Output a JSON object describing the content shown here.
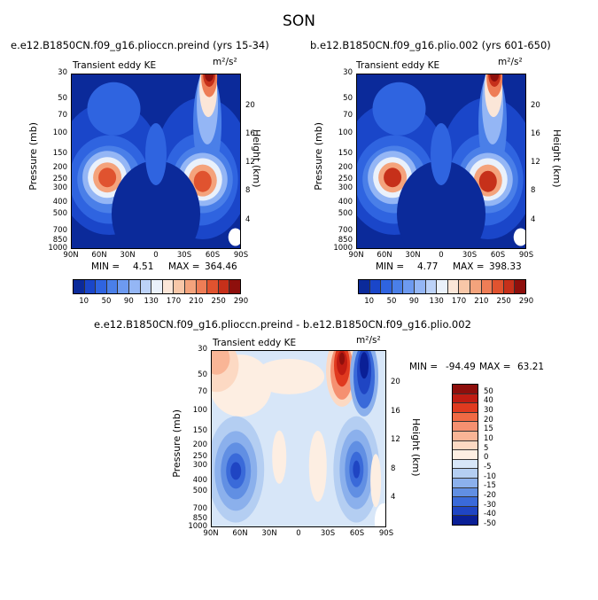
{
  "supertitle": "SON",
  "colors": {
    "ke_scale": [
      "#0b2a9a",
      "#1a46c9",
      "#2f64e0",
      "#4a7fe8",
      "#6d9af0",
      "#94b6f5",
      "#bcd2f8",
      "#eaf1fb",
      "#fbe6d8",
      "#f8c7a8",
      "#f4a37c",
      "#ee7d56",
      "#e0532f",
      "#c6301a",
      "#8e0f0c"
    ],
    "diff_scale": [
      "#8e0f0c",
      "#c01c12",
      "#e03a1f",
      "#f06a44",
      "#f59070",
      "#f9b596",
      "#fcd9c3",
      "#fdeee2",
      "#d7e6f8",
      "#b4cef2",
      "#8bb0ec",
      "#618fe3",
      "#3a6ad9",
      "#1f45c3",
      "#0a1f96"
    ]
  },
  "panels": {
    "left": {
      "title": "e.e12.B1850CN.f09_g16.plioccn.preind (yrs 15-34)",
      "var_label": "Transient eddy KE",
      "units": "m²/s²",
      "min_label": "MIN =",
      "min_value": "4.51",
      "max_label": "MAX =",
      "max_value": "364.46"
    },
    "right": {
      "title": "b.e12.B1850CN.f09_g16.plio.002 (yrs 601-650)",
      "var_label": "Transient eddy KE",
      "units": "m²/s²",
      "min_label": "MIN =",
      "min_value": "4.77",
      "max_label": "MAX =",
      "max_value": "398.33"
    },
    "bottom": {
      "title": "e.e12.B1850CN.f09_g16.plioccn.preind - b.e12.B1850CN.f09_g16.plio.002",
      "var_label": "Transient eddy KE",
      "units": "m²/s²",
      "min_label": "MIN =",
      "min_value": "-94.49",
      "max_label": "MAX =",
      "max_value": "63.21"
    }
  },
  "axes": {
    "ylabel": "Pressure (mb)",
    "y2label": "Height (km)",
    "x_ticks": [
      "90N",
      "60N",
      "30N",
      "0",
      "30S",
      "60S",
      "90S"
    ],
    "p_ticks": [
      "30",
      "50",
      "70",
      "100",
      "150",
      "200",
      "250",
      "300",
      "400",
      "500",
      "700",
      "850",
      "1000"
    ],
    "h_ticks": [
      "20",
      "16",
      "12",
      "8",
      "4"
    ]
  },
  "ke_colorbar_labels": [
    "10",
    "50",
    "90",
    "130",
    "170",
    "210",
    "250",
    "290"
  ],
  "diff_colorbar_labels": [
    "50",
    "40",
    "30",
    "20",
    "15",
    "10",
    "5",
    "0",
    "-5",
    "-10",
    "-15",
    "-20",
    "-30",
    "-40",
    "-50"
  ],
  "chart_data": [
    {
      "type": "heatmap",
      "title": "e.e12.B1850CN.f09_g16.plioccn.preind (yrs 15-34)",
      "xlabel": "",
      "ylabel": "Pressure (mb)",
      "y2label": "Height (km)",
      "x_ticks": [
        "90N",
        "60N",
        "30N",
        "0",
        "30S",
        "60S",
        "90S"
      ],
      "y_ticks": [
        30,
        50,
        70,
        100,
        150,
        200,
        250,
        300,
        400,
        500,
        700,
        850,
        1000
      ],
      "ylim": [
        1000,
        30
      ],
      "y_scale": "log",
      "contour_levels": [
        10,
        30,
        50,
        70,
        90,
        110,
        130,
        150,
        170,
        190,
        210,
        230,
        250,
        270,
        290
      ],
      "min": 4.51,
      "max": 364.46,
      "features": [
        {
          "lat": 50,
          "p": 250,
          "value": 290
        },
        {
          "lat": -50,
          "p": 250,
          "value": 300
        },
        {
          "lat": -55,
          "p": 30,
          "value": 360
        }
      ]
    },
    {
      "type": "heatmap",
      "title": "b.e12.B1850CN.f09_g16.plio.002 (yrs 601-650)",
      "xlabel": "",
      "ylabel": "Pressure (mb)",
      "y2label": "Height (km)",
      "x_ticks": [
        "90N",
        "60N",
        "30N",
        "0",
        "30S",
        "60S",
        "90S"
      ],
      "y_ticks": [
        30,
        50,
        70,
        100,
        150,
        200,
        250,
        300,
        400,
        500,
        700,
        850,
        1000
      ],
      "ylim": [
        1000,
        30
      ],
      "y_scale": "log",
      "contour_levels": [
        10,
        30,
        50,
        70,
        90,
        110,
        130,
        150,
        170,
        190,
        210,
        230,
        250,
        270,
        290
      ],
      "min": 4.77,
      "max": 398.33,
      "features": [
        {
          "lat": 55,
          "p": 250,
          "value": 310
        },
        {
          "lat": -55,
          "p": 280,
          "value": 320
        },
        {
          "lat": -55,
          "p": 30,
          "value": 390
        }
      ]
    },
    {
      "type": "heatmap",
      "title": "e.e12.B1850CN.f09_g16.plioccn.preind - b.e12.B1850CN.f09_g16.plio.002",
      "xlabel": "",
      "ylabel": "Pressure (mb)",
      "y2label": "Height (km)",
      "x_ticks": [
        "90N",
        "60N",
        "30N",
        "0",
        "30S",
        "60S",
        "90S"
      ],
      "y_ticks": [
        30,
        50,
        70,
        100,
        150,
        200,
        250,
        300,
        400,
        500,
        700,
        850,
        1000
      ],
      "ylim": [
        1000,
        30
      ],
      "y_scale": "log",
      "contour_levels": [
        -50,
        -40,
        -30,
        -20,
        -15,
        -10,
        -5,
        0,
        5,
        10,
        15,
        20,
        30,
        40,
        50
      ],
      "min": -94.49,
      "max": 63.21,
      "features": [
        {
          "lat": -45,
          "p": 40,
          "value": 60
        },
        {
          "lat": -65,
          "p": 50,
          "value": -90
        },
        {
          "lat": 65,
          "p": 330,
          "value": -35
        },
        {
          "lat": -60,
          "p": 320,
          "value": -45
        },
        {
          "lat": 80,
          "p": 40,
          "value": 20
        }
      ]
    }
  ]
}
